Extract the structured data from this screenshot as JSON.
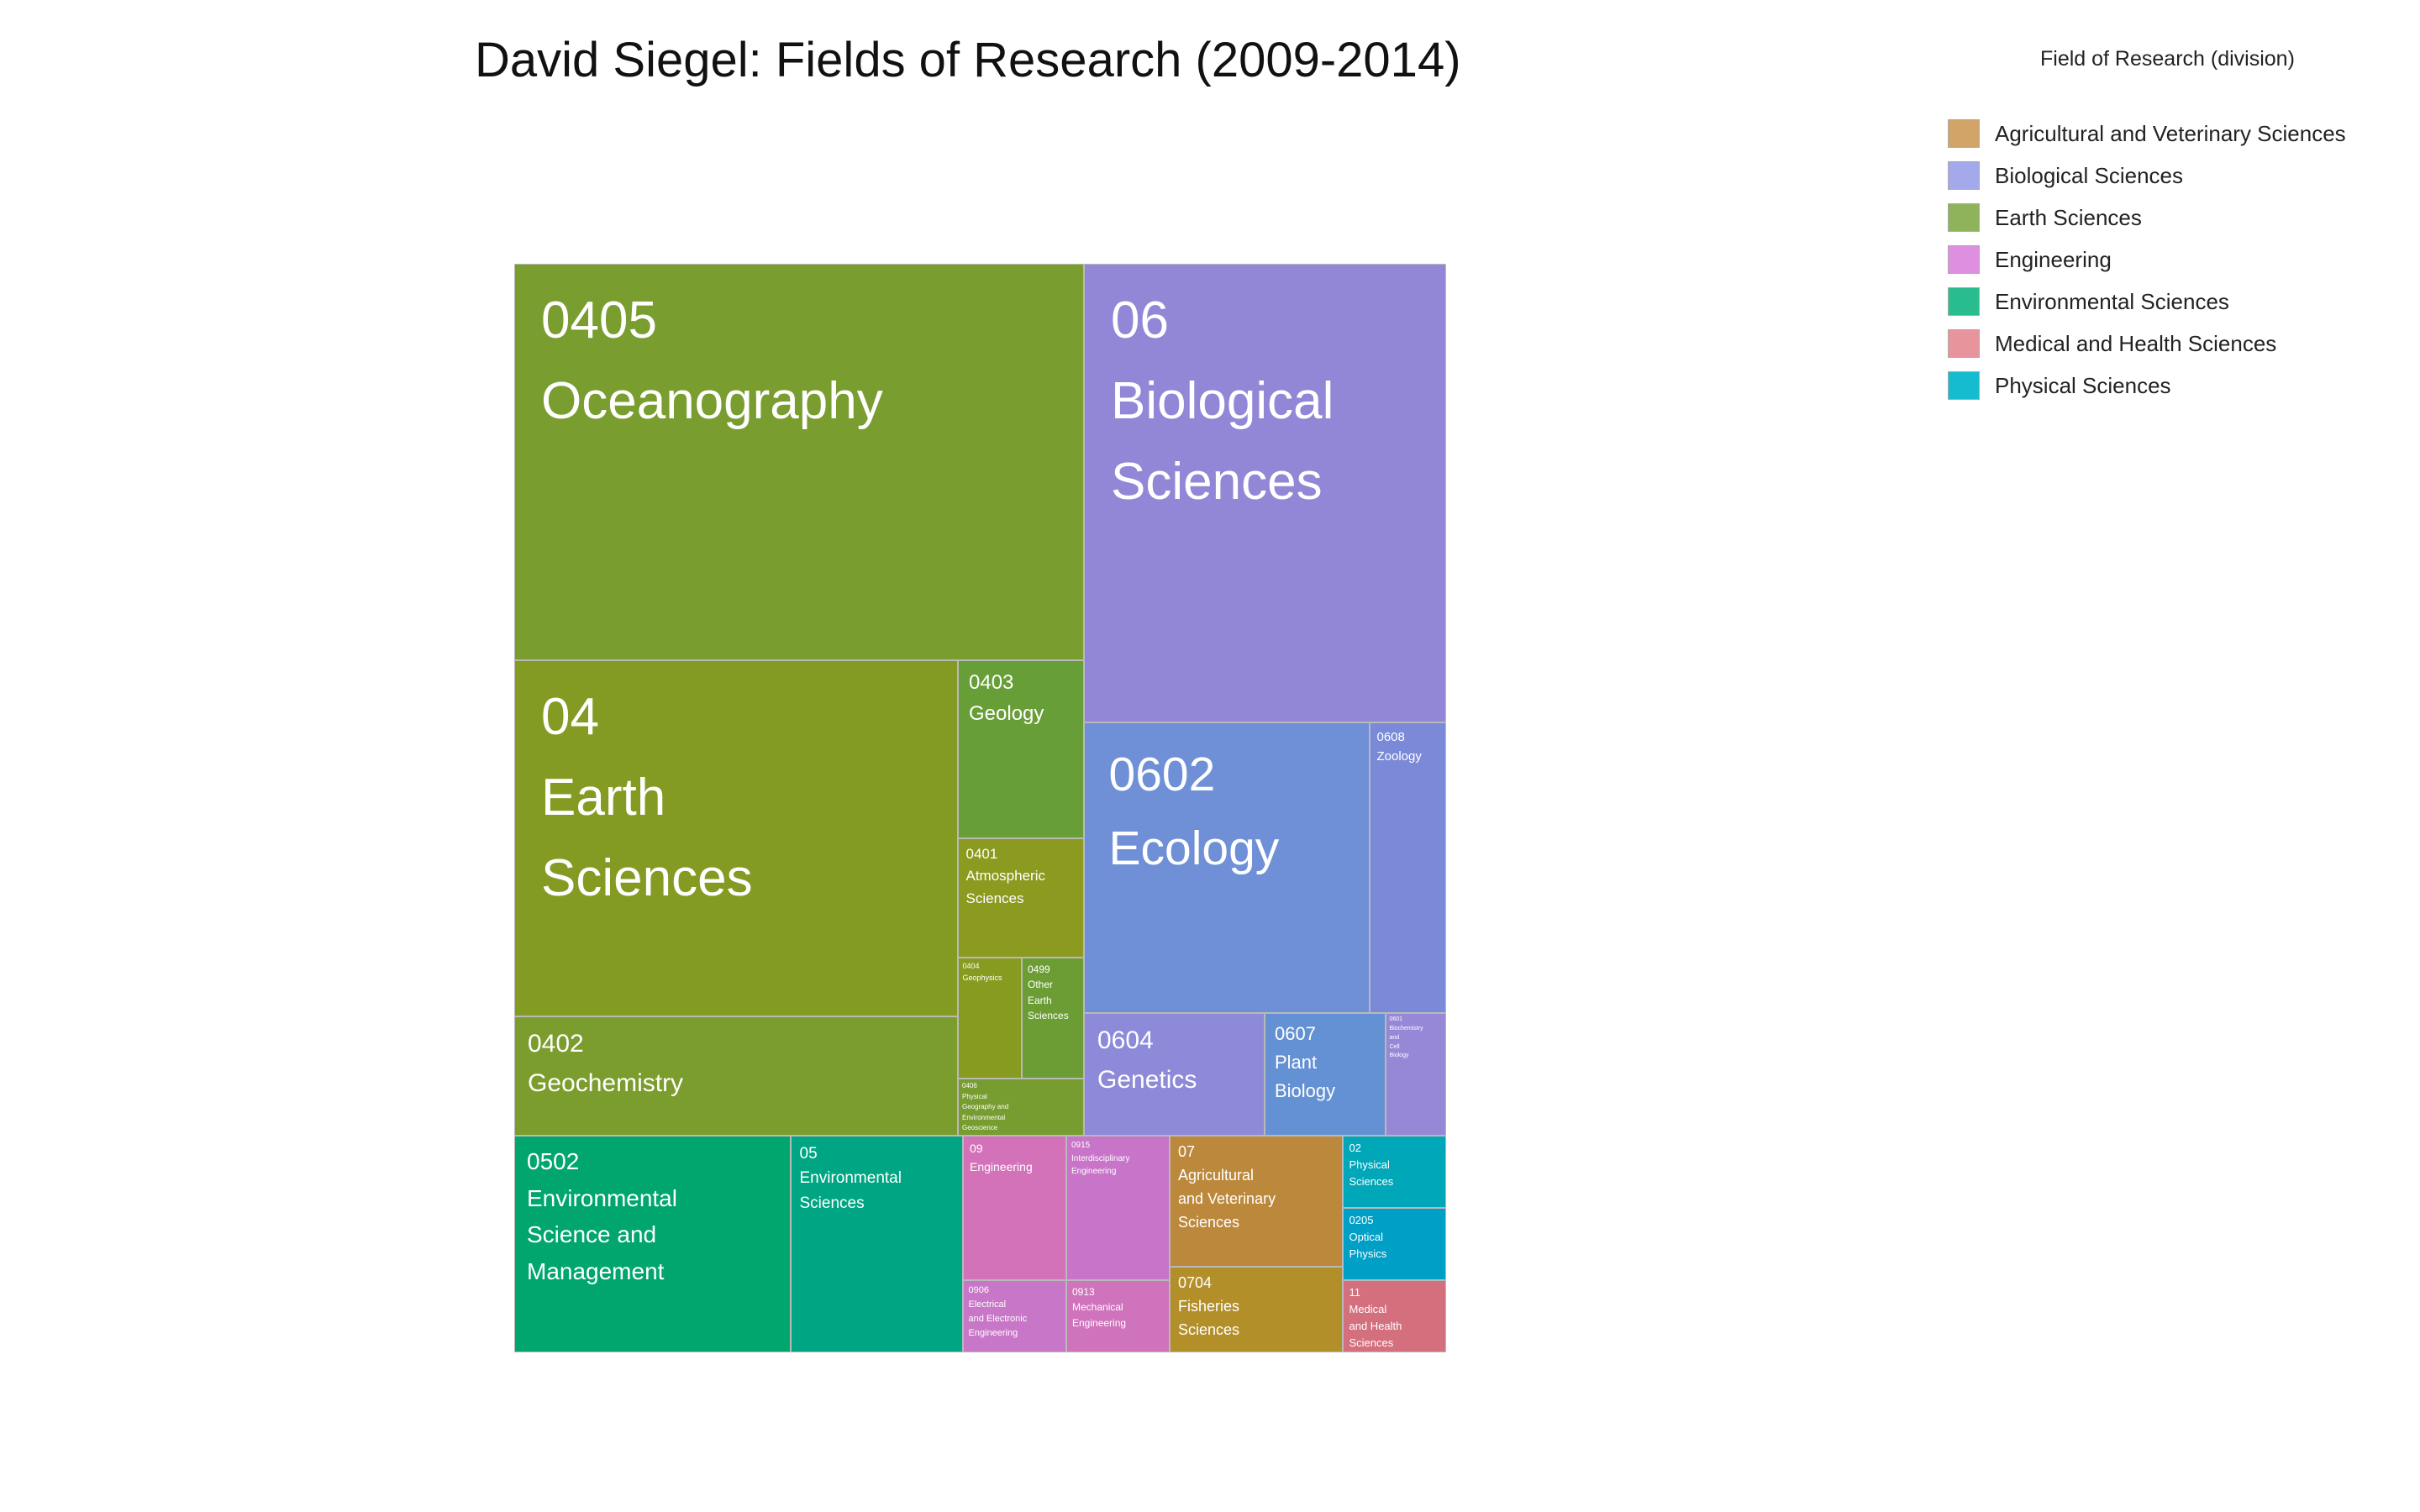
{
  "chart_data": {
    "type": "treemap",
    "title": "David Siegel: Fields of Research (2009-2014)",
    "legend": {
      "title": "Field of Research (division)",
      "position": "top-right",
      "items": [
        {
          "label": "Agricultural and Veterinary Sciences",
          "color": "#d2a467"
        },
        {
          "label": "Biological Sciences",
          "color": "#a3a9ea"
        },
        {
          "label": "Earth Sciences",
          "color": "#8eb35a"
        },
        {
          "label": "Engineering",
          "color": "#de8fe0"
        },
        {
          "label": "Environmental Sciences",
          "color": "#29bc8e"
        },
        {
          "label": "Medical and Health Sciences",
          "color": "#e8949d"
        },
        {
          "label": "Physical Sciences",
          "color": "#15bccf"
        }
      ]
    },
    "tiles": [
      {
        "code": "0405",
        "name": "Oceanography",
        "division": "Earth Sciences",
        "color": "#799d2f"
      },
      {
        "code": "04",
        "name": "Earth\nSciences",
        "division": "Earth Sciences",
        "color": "#849b23"
      },
      {
        "code": "0403",
        "name": "Geology",
        "division": "Earth Sciences",
        "color": "#689e37"
      },
      {
        "code": "0401",
        "name": "Atmospheric\nSciences",
        "division": "Earth Sciences",
        "color": "#8c9a1f"
      },
      {
        "code": "0404",
        "name": "Geophysics",
        "division": "Earth Sciences",
        "color": "#879b21"
      },
      {
        "code": "0499",
        "name": "Other\nEarth\nSciences",
        "division": "Earth Sciences",
        "color": "#6c9d35"
      },
      {
        "code": "0402",
        "name": "Geochemistry",
        "division": "Earth Sciences",
        "color": "#7b9d2d"
      },
      {
        "code": "0406",
        "name": "Physical\nGeography and\nEnvironmental\nGeoscience",
        "division": "Earth Sciences",
        "color": "#779c2f"
      },
      {
        "code": "06",
        "name": "Biological\nSciences",
        "division": "Biological Sciences",
        "color": "#9287d6"
      },
      {
        "code": "0602",
        "name": "Ecology",
        "division": "Biological Sciences",
        "color": "#6f90d7"
      },
      {
        "code": "0608",
        "name": "Zoology",
        "division": "Biological Sciences",
        "color": "#7b8ad8"
      },
      {
        "code": "0604",
        "name": "Genetics",
        "division": "Biological Sciences",
        "color": "#8c8ad9"
      },
      {
        "code": "0607",
        "name": "Plant\nBiology",
        "division": "Biological Sciences",
        "color": "#6491d3"
      },
      {
        "code": "0601",
        "name": "Biochemistry\nand\nCell\nBiology",
        "division": "Biological Sciences",
        "color": "#9788d7"
      },
      {
        "code": "0502",
        "name": "Environmental\nScience and\nManagement",
        "division": "Environmental Sciences",
        "color": "#00a66e"
      },
      {
        "code": "05",
        "name": "Environmental\nSciences",
        "division": "Environmental Sciences",
        "color": "#00a683"
      },
      {
        "code": "09",
        "name": "Engineering",
        "division": "Engineering",
        "color": "#d371b9"
      },
      {
        "code": "0915",
        "name": "Interdisciplinary\nEngineering",
        "division": "Engineering",
        "color": "#c774c9"
      },
      {
        "code": "0906",
        "name": "Electrical\nand Electronic\nEngineering",
        "division": "Engineering",
        "color": "#c876c8"
      },
      {
        "code": "0913",
        "name": "Mechanical\nEngineering",
        "division": "Engineering",
        "color": "#d073bd"
      },
      {
        "code": "07",
        "name": "Agricultural\nand Veterinary\nSciences",
        "division": "Agricultural and Veterinary Sciences",
        "color": "#bc883c"
      },
      {
        "code": "0704",
        "name": "Fisheries\nSciences",
        "division": "Agricultural and Veterinary Sciences",
        "color": "#b38f2a"
      },
      {
        "code": "02",
        "name": "Physical\nSciences",
        "division": "Physical Sciences",
        "color": "#00a7b9"
      },
      {
        "code": "0205",
        "name": "Optical\nPhysics",
        "division": "Physical Sciences",
        "color": "#00a0c6"
      },
      {
        "code": "11",
        "name": "Medical\nand Health\nSciences",
        "division": "Medical and Health Sciences",
        "color": "#d46f7e"
      }
    ]
  }
}
